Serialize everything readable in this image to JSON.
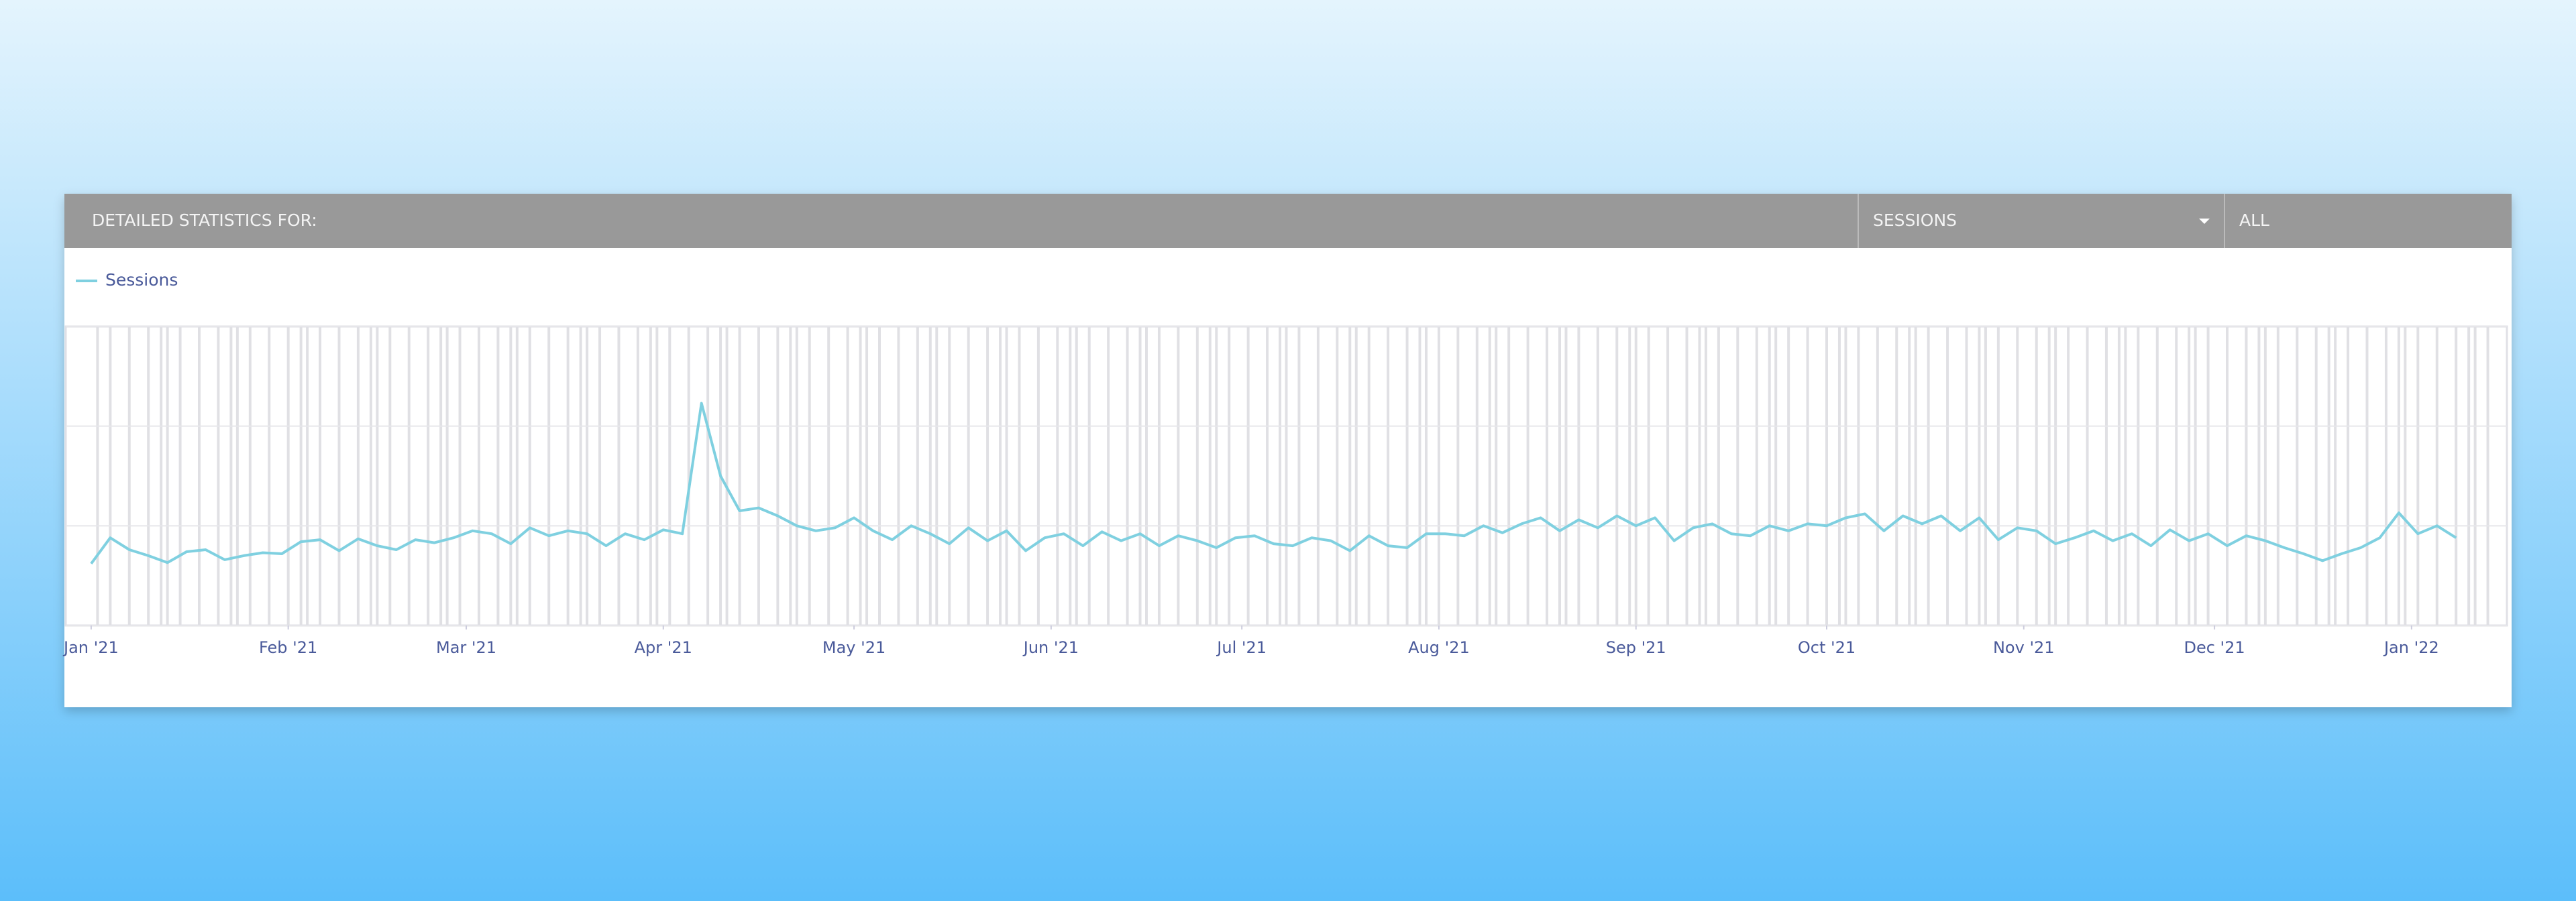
{
  "header": {
    "title": "DETAILED STATISTICS FOR:",
    "metric": "SESSIONS",
    "filter": "ALL"
  },
  "chart_data": {
    "type": "line",
    "x": [
      0,
      3,
      6,
      9,
      12,
      15,
      18,
      21,
      24,
      27,
      30,
      33,
      36,
      39,
      42,
      45,
      48,
      51,
      54,
      57,
      60,
      63,
      66,
      69,
      72,
      75,
      78,
      81,
      84,
      87,
      90,
      93,
      96,
      99,
      102,
      105,
      108,
      111,
      114,
      117,
      120,
      123,
      126,
      129,
      132,
      135,
      138,
      141,
      144,
      147,
      150,
      153,
      156,
      159,
      162,
      165,
      168,
      171,
      174,
      177,
      180,
      183,
      186,
      189,
      192,
      195,
      198,
      201,
      204,
      207,
      210,
      213,
      216,
      219,
      222,
      225,
      228,
      231,
      234,
      237,
      240,
      243,
      246,
      249,
      252,
      255,
      258,
      261,
      264,
      267,
      270,
      273,
      276,
      279,
      282,
      285,
      288,
      291,
      294,
      297,
      300,
      303,
      306,
      309,
      312,
      315,
      318,
      321,
      324,
      327,
      330,
      333,
      336,
      339,
      342,
      345,
      348,
      351,
      354,
      357,
      360,
      363,
      366,
      369,
      372
    ],
    "series": [
      {
        "name": "Sessions",
        "color": "#7fd0e0",
        "values": [
          62,
          88,
          76,
          70,
          63,
          74,
          76,
          66,
          70,
          73,
          72,
          84,
          86,
          75,
          87,
          80,
          76,
          86,
          83,
          88,
          95,
          92,
          82,
          98,
          90,
          95,
          92,
          80,
          92,
          86,
          96,
          92,
          223,
          150,
          115,
          118,
          110,
          100,
          95,
          98,
          108,
          95,
          86,
          100,
          92,
          82,
          98,
          85,
          95,
          75,
          88,
          92,
          80,
          94,
          85,
          92,
          80,
          90,
          85,
          78,
          88,
          90,
          82,
          80,
          88,
          85,
          75,
          90,
          80,
          78,
          92,
          92,
          90,
          100,
          93,
          102,
          108,
          95,
          106,
          98,
          110,
          100,
          108,
          85,
          98,
          102,
          92,
          90,
          100,
          95,
          102,
          100,
          108,
          112,
          95,
          110,
          102,
          110,
          95,
          108,
          86,
          98,
          95,
          82,
          88,
          95,
          85,
          92,
          80,
          96,
          85,
          92,
          80,
          90,
          85,
          78,
          72,
          65,
          72,
          78,
          88,
          113,
          92,
          100,
          88
        ]
      }
    ],
    "xlim": [
      -4,
      380
    ],
    "xticks": [
      {
        "value": 0,
        "label": "Jan '21"
      },
      {
        "value": 31,
        "label": "Feb '21"
      },
      {
        "value": 59,
        "label": "Mar '21"
      },
      {
        "value": 90,
        "label": "Apr '21"
      },
      {
        "value": 120,
        "label": "May '21"
      },
      {
        "value": 151,
        "label": "Jun '21"
      },
      {
        "value": 181,
        "label": "Jul '21"
      },
      {
        "value": 212,
        "label": "Aug '21"
      },
      {
        "value": 243,
        "label": "Sep '21"
      },
      {
        "value": 273,
        "label": "Oct '21"
      },
      {
        "value": 304,
        "label": "Nov '21"
      },
      {
        "value": 334,
        "label": "Dec '21"
      },
      {
        "value": 365,
        "label": "Jan '22"
      }
    ],
    "ylim": [
      0,
      300
    ],
    "yticks": [
      0,
      100,
      200,
      300
    ],
    "grid": true
  }
}
